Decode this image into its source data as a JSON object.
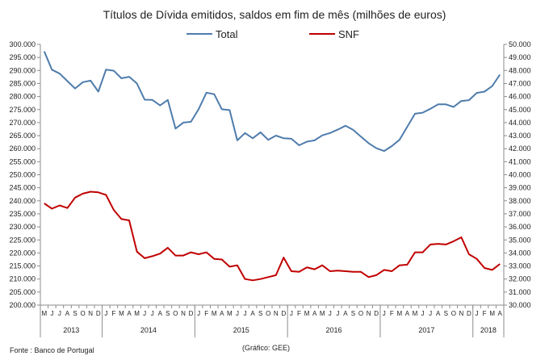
{
  "chart_data": {
    "type": "line",
    "title": "Títulos de Dívida emitidos, saldos em fim de mês  (milhões de euros)",
    "legend_placement": "top",
    "source_note": "Fonte : Banco de Portugal",
    "graphic_note": "(Gráfico: GEE)",
    "x": [
      "M",
      "J",
      "J",
      "A",
      "S",
      "O",
      "N",
      "D",
      "J",
      "F",
      "M",
      "A",
      "M",
      "J",
      "J",
      "A",
      "S",
      "O",
      "N",
      "D",
      "J",
      "F",
      "M",
      "A",
      "M",
      "J",
      "J",
      "A",
      "S",
      "O",
      "N",
      "D",
      "J",
      "F",
      "M",
      "A",
      "M",
      "J",
      "J",
      "A",
      "S",
      "O",
      "N",
      "D",
      "J",
      "F",
      "M",
      "A",
      "M",
      "J",
      "J",
      "A",
      "S",
      "O",
      "N",
      "D",
      "J",
      "F",
      "M",
      "A"
    ],
    "years": [
      {
        "label": "2013",
        "start": 0,
        "end": 7
      },
      {
        "label": "2014",
        "start": 8,
        "end": 19
      },
      {
        "label": "2015",
        "start": 20,
        "end": 31
      },
      {
        "label": "2016",
        "start": 32,
        "end": 43
      },
      {
        "label": "2017",
        "start": 44,
        "end": 55
      },
      {
        "label": "2018",
        "start": 56,
        "end": 59
      }
    ],
    "y_left": {
      "min": 200000,
      "max": 300000,
      "step": 5000,
      "ticks": [
        "200.000",
        "205.000",
        "210.000",
        "215.000",
        "220.000",
        "225.000",
        "230.000",
        "235.000",
        "240.000",
        "245.000",
        "250.000",
        "255.000",
        "260.000",
        "265.000",
        "270.000",
        "275.000",
        "280.000",
        "285.000",
        "290.000",
        "295.000",
        "300.000"
      ]
    },
    "y_right": {
      "min": 30000,
      "max": 50000,
      "step": 1000,
      "ticks": [
        "30.000",
        "31.000",
        "32.000",
        "33.000",
        "34.000",
        "35.000",
        "36.000",
        "37.000",
        "38.000",
        "39.000",
        "40.000",
        "41.000",
        "42.000",
        "43.000",
        "44.000",
        "45.000",
        "46.000",
        "47.000",
        "48.000",
        "49.000",
        "50.000"
      ]
    },
    "grid": false,
    "series": [
      {
        "name": "Total",
        "axis": "left",
        "color": "#4f7cac",
        "values": [
          297300,
          290300,
          288800,
          285900,
          283100,
          285500,
          286100,
          281900,
          290300,
          289900,
          287000,
          287600,
          285000,
          278800,
          278700,
          276600,
          278700,
          267700,
          270000,
          270300,
          275200,
          281500,
          280900,
          275100,
          274800,
          263200,
          266000,
          264000,
          266300,
          263400,
          265000,
          264000,
          263800,
          261300,
          262700,
          263200,
          265100,
          266000,
          267300,
          268800,
          267200,
          264600,
          262100,
          260200,
          259100,
          261000,
          263400,
          268400,
          273400,
          273800,
          275300,
          277000,
          277000,
          276000,
          278300,
          278600,
          281400,
          281900,
          284000,
          288400
        ]
      },
      {
        "name": "SNF",
        "axis": "right",
        "color": "#c00000",
        "values": [
          37800,
          37400,
          37650,
          37450,
          38250,
          38550,
          38700,
          38650,
          38450,
          37300,
          36600,
          36500,
          34100,
          33600,
          33750,
          33950,
          34400,
          33800,
          33800,
          34050,
          33900,
          34050,
          33550,
          33500,
          32950,
          33050,
          32000,
          31900,
          32000,
          32150,
          32300,
          33650,
          32600,
          32550,
          32900,
          32750,
          33050,
          32600,
          32650,
          32600,
          32550,
          32550,
          32150,
          32300,
          32700,
          32600,
          33050,
          33100,
          34050,
          34050,
          34650,
          34700,
          34650,
          34900,
          35200,
          33900,
          33550,
          32850,
          32700,
          33150
        ]
      }
    ]
  }
}
